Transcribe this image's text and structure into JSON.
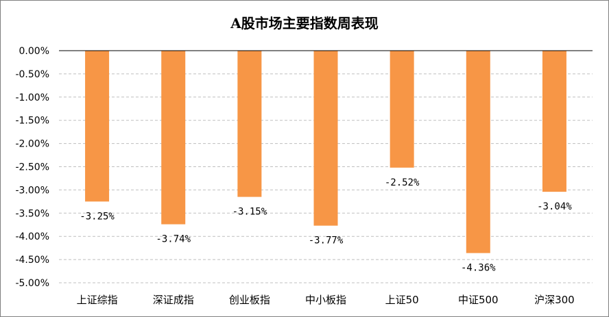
{
  "chart_data": {
    "type": "bar",
    "title": "A股市场主要指数周表现",
    "xlabel": "",
    "ylabel": "",
    "categories": [
      "上证综指",
      "深证成指",
      "创业板指",
      "中小板指",
      "上证50",
      "中证500",
      "沪深300"
    ],
    "values": [
      -3.25,
      -3.74,
      -3.15,
      -3.77,
      -2.52,
      -4.36,
      -3.04
    ],
    "data_labels": [
      "-3.25%",
      "-3.74%",
      "-3.15%",
      "-3.77%",
      "-2.52%",
      "-4.36%",
      "-3.04%"
    ],
    "y_ticks": [
      "0.00%",
      "-0.50%",
      "-1.00%",
      "-1.50%",
      "-2.00%",
      "-2.50%",
      "-3.00%",
      "-3.50%",
      "-4.00%",
      "-4.50%",
      "-5.00%"
    ],
    "ylim": [
      -5,
      0
    ],
    "grid": true,
    "legend": "none",
    "bar_color": "#F79646",
    "grid_color": "#BFBFBF",
    "axis_color": "#000000"
  }
}
